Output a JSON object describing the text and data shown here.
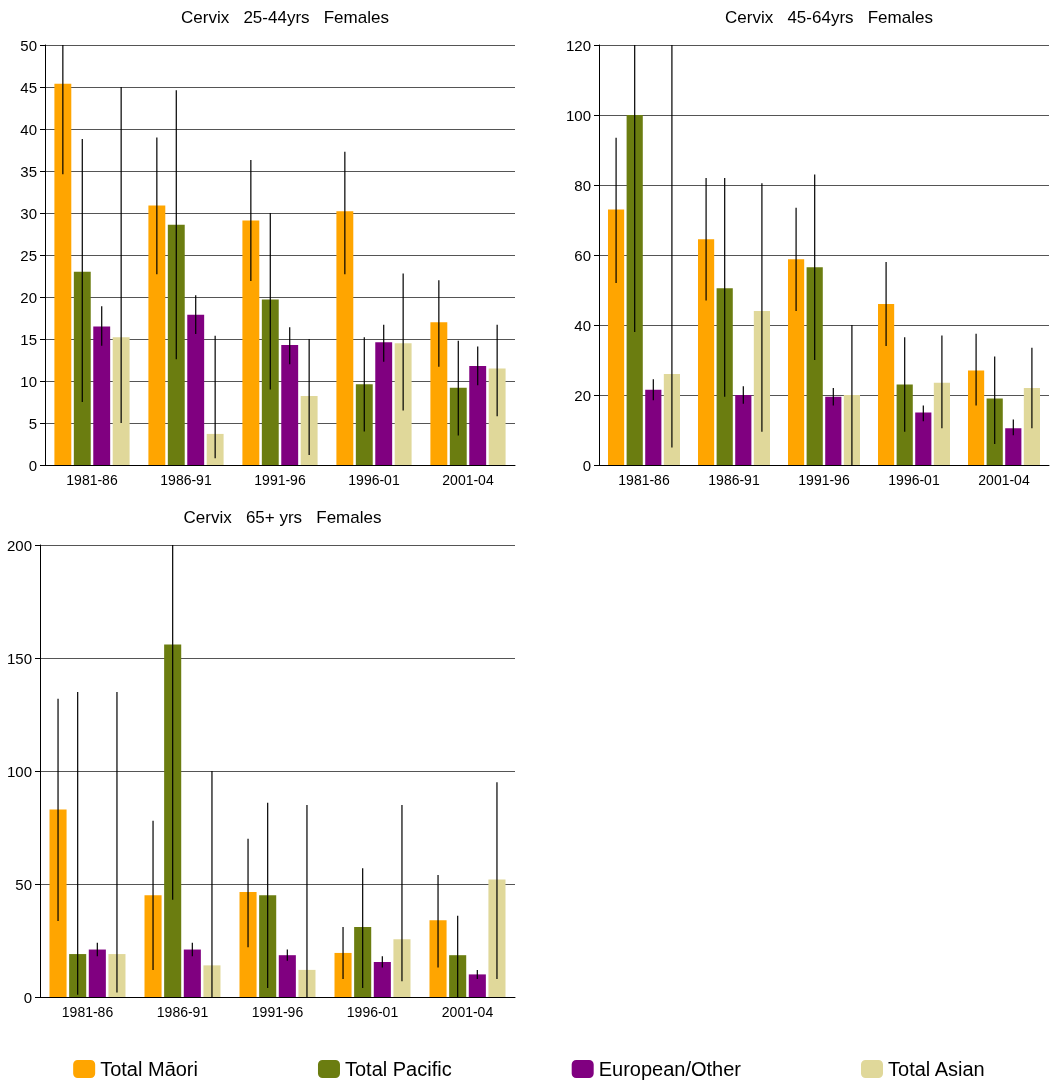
{
  "chart_data": [
    {
      "type": "bar",
      "title": "Cervix   25-44yrs   Females",
      "categories": [
        "1981-86",
        "1986-91",
        "1991-96",
        "1996-01",
        "2001-04"
      ],
      "ylim": [
        0,
        50
      ],
      "yticks": [
        0,
        5,
        10,
        15,
        20,
        25,
        30,
        35,
        40,
        45,
        50
      ],
      "grid": "y",
      "legend": false,
      "series": [
        {
          "color": "#ffa500",
          "values": [
            45.4,
            30.9,
            29.1,
            30.2,
            17
          ],
          "errors": [
            [
              34.6,
              50
            ],
            [
              22.7,
              39
            ],
            [
              21.9,
              36.3
            ],
            [
              22.7,
              37.3
            ],
            [
              11.7,
              22
            ]
          ]
        },
        {
          "color": "#6b7d10",
          "values": [
            23,
            28.6,
            19.7,
            9.6,
            9.2
          ],
          "errors": [
            [
              7.5,
              38.8
            ],
            [
              12.6,
              44.6
            ],
            [
              9,
              30
            ],
            [
              4,
              15.2
            ],
            [
              3.5,
              14.8
            ]
          ]
        },
        {
          "color": "#800080",
          "values": [
            16.5,
            17.9,
            14.3,
            14.6,
            11.8
          ],
          "errors": [
            [
              14.2,
              18.9
            ],
            [
              15.6,
              20.2
            ],
            [
              12,
              16.4
            ],
            [
              12.3,
              16.7
            ],
            [
              9.5,
              14.1
            ]
          ]
        },
        {
          "color": "#e0d89a",
          "values": [
            15.2,
            3.7,
            8.2,
            14.5,
            11.5
          ],
          "errors": [
            [
              5,
              45
            ],
            [
              0.8,
              15.4
            ],
            [
              1.2,
              15
            ],
            [
              6.5,
              22.8
            ],
            [
              5.8,
              16.7
            ]
          ]
        }
      ]
    },
    {
      "type": "bar",
      "title": "Cervix   45-64yrs   Females",
      "categories": [
        "1981-86",
        "1986-91",
        "1991-96",
        "1996-01",
        "2001-04"
      ],
      "ylim": [
        0,
        120
      ],
      "yticks": [
        0,
        20,
        40,
        60,
        80,
        100,
        120
      ],
      "grid": "y",
      "legend": false,
      "series": [
        {
          "color": "#ffa500",
          "values": [
            73,
            64.5,
            58.8,
            46,
            27
          ],
          "errors": [
            [
              52,
              93.5
            ],
            [
              47,
              82
            ],
            [
              44,
              73.5
            ],
            [
              34,
              58
            ],
            [
              17,
              37.5
            ]
          ]
        },
        {
          "color": "#6b7d10",
          "values": [
            100,
            50.5,
            56.5,
            23,
            19
          ],
          "errors": [
            [
              38,
              120
            ],
            [
              19.5,
              82
            ],
            [
              30,
              83
            ],
            [
              9.5,
              36.5
            ],
            [
              6,
              31
            ]
          ]
        },
        {
          "color": "#800080",
          "values": [
            21.5,
            20,
            19.5,
            15,
            10.5
          ],
          "errors": [
            [
              18.5,
              24.5
            ],
            [
              17.5,
              22.5
            ],
            [
              17,
              22
            ],
            [
              12.5,
              17
            ],
            [
              8.5,
              13
            ]
          ]
        },
        {
          "color": "#e0d89a",
          "values": [
            26,
            44,
            20,
            23.5,
            22
          ],
          "errors": [
            [
              5,
              120
            ],
            [
              9.5,
              80.5
            ],
            [
              0,
              40
            ],
            [
              10.5,
              37
            ],
            [
              10.5,
              33.5
            ]
          ]
        }
      ]
    },
    {
      "type": "bar",
      "title": "Cervix   65+ yrs   Females",
      "categories": [
        "1981-86",
        "1986-91",
        "1991-96",
        "1996-01",
        "2001-04"
      ],
      "ylim": [
        0,
        200
      ],
      "yticks": [
        0,
        50,
        100,
        150,
        200
      ],
      "grid": "y",
      "legend": "bottom",
      "series": [
        {
          "name": "Total Māori",
          "color": "#ffa500",
          "values": [
            83,
            45,
            46.5,
            19.5,
            34
          ],
          "errors": [
            [
              33.6,
              132
            ],
            [
              12,
              78
            ],
            [
              22,
              70
            ],
            [
              8,
              31
            ],
            [
              13,
              54
            ]
          ]
        },
        {
          "name": "Total Pacific",
          "color": "#6b7d10",
          "values": [
            19,
            156,
            45,
            31,
            18.5
          ],
          "errors": [
            [
              1,
              135
            ],
            [
              43,
              200
            ],
            [
              4,
              86
            ],
            [
              4,
              57
            ],
            [
              0,
              36
            ]
          ]
        },
        {
          "name": "European/Other",
          "color": "#800080",
          "values": [
            21,
            21,
            18.5,
            15.5,
            10
          ],
          "errors": [
            [
              18,
              24
            ],
            [
              18,
              24
            ],
            [
              16,
              21
            ],
            [
              13,
              18
            ],
            [
              8,
              12
            ]
          ]
        },
        {
          "name": "Total Asian",
          "color": "#e0d89a",
          "values": [
            19,
            14,
            12,
            25.5,
            52
          ],
          "errors": [
            [
              2,
              135
            ],
            [
              0,
              100
            ],
            [
              0,
              85
            ],
            [
              7,
              85
            ],
            [
              8,
              95
            ]
          ]
        }
      ]
    }
  ]
}
